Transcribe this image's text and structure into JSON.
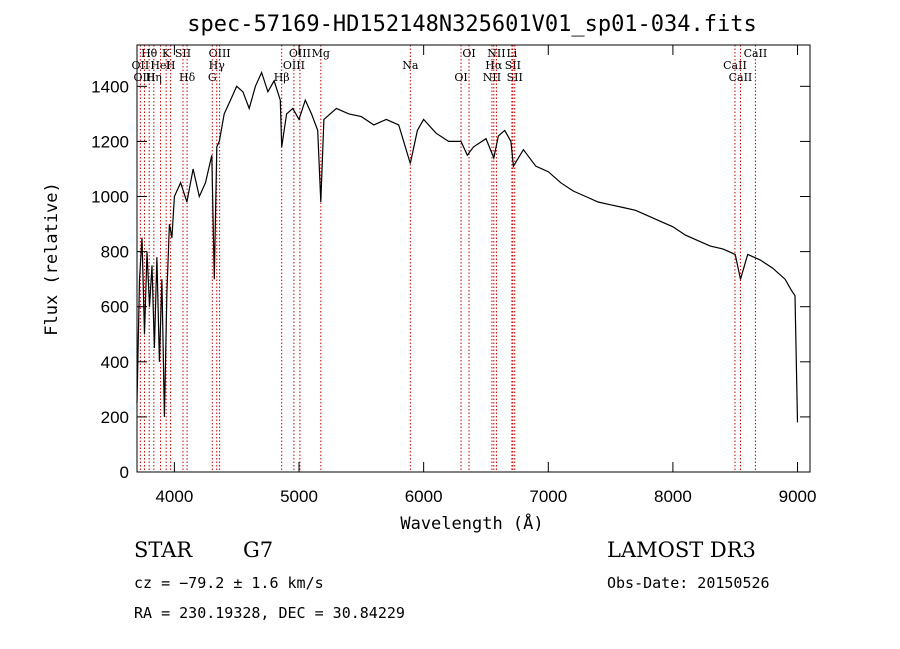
{
  "chart_data": {
    "type": "line",
    "title": "spec-57169-HD152148N325601V01_sp01-034.fits",
    "xlabel": "Wavelength (Å)",
    "ylabel": "Flux (relative)",
    "xlim": [
      3700,
      9100
    ],
    "ylim": [
      0,
      1550
    ],
    "xticks": [
      4000,
      5000,
      6000,
      7000,
      8000,
      9000
    ],
    "yticks": [
      0,
      200,
      400,
      600,
      800,
      1000,
      1200,
      1400
    ],
    "series": [
      {
        "name": "flux",
        "x": [
          3700,
          3720,
          3740,
          3760,
          3780,
          3800,
          3820,
          3840,
          3860,
          3880,
          3900,
          3920,
          3940,
          3960,
          3980,
          4000,
          4050,
          4100,
          4150,
          4200,
          4250,
          4300,
          4320,
          4340,
          4360,
          4400,
          4450,
          4500,
          4550,
          4600,
          4650,
          4700,
          4750,
          4800,
          4850,
          4861,
          4900,
          4950,
          5000,
          5050,
          5100,
          5150,
          5175,
          5200,
          5300,
          5400,
          5500,
          5600,
          5700,
          5800,
          5893,
          5950,
          6000,
          6100,
          6200,
          6300,
          6350,
          6400,
          6500,
          6563,
          6600,
          6650,
          6700,
          6720,
          6800,
          6900,
          7000,
          7100,
          7200,
          7300,
          7400,
          7500,
          7600,
          7700,
          7800,
          7900,
          8000,
          8100,
          8200,
          8300,
          8400,
          8500,
          8542,
          8600,
          8700,
          8800,
          8900,
          8950,
          8980,
          9000
        ],
        "values": [
          250,
          700,
          850,
          500,
          800,
          600,
          750,
          450,
          780,
          400,
          700,
          200,
          650,
          900,
          850,
          1000,
          1050,
          980,
          1100,
          1000,
          1050,
          1150,
          700,
          1180,
          1200,
          1300,
          1350,
          1400,
          1380,
          1320,
          1400,
          1450,
          1380,
          1420,
          1350,
          1180,
          1300,
          1320,
          1280,
          1350,
          1300,
          1240,
          980,
          1280,
          1320,
          1300,
          1290,
          1260,
          1280,
          1260,
          1120,
          1240,
          1280,
          1230,
          1200,
          1200,
          1150,
          1180,
          1210,
          1140,
          1220,
          1240,
          1200,
          1110,
          1170,
          1110,
          1090,
          1050,
          1020,
          1000,
          980,
          970,
          960,
          950,
          930,
          910,
          890,
          860,
          840,
          820,
          810,
          790,
          700,
          790,
          770,
          740,
          700,
          660,
          640,
          180
        ]
      }
    ],
    "lines": [
      {
        "name": "Hθ",
        "wave": 3798
      },
      {
        "name": "OII",
        "wave": 3727
      },
      {
        "name": "OIII",
        "wave": 3760
      },
      {
        "name": "K",
        "wave": 3934
      },
      {
        "name": "HeI",
        "wave": 3889
      },
      {
        "name": "Hη",
        "wave": 3835
      },
      {
        "name": "SII",
        "wave": 4069
      },
      {
        "name": "H",
        "wave": 3970
      },
      {
        "name": "Hδ",
        "wave": 4102
      },
      {
        "name": "OIII",
        "wave": 4363
      },
      {
        "name": "Hγ",
        "wave": 4340
      },
      {
        "name": "G",
        "wave": 4304
      },
      {
        "name": "OIII",
        "wave": 5007
      },
      {
        "name": "OIII",
        "wave": 4959
      },
      {
        "name": "Hβ",
        "wave": 4861
      },
      {
        "name": "Mg",
        "wave": 5175
      },
      {
        "name": "Na",
        "wave": 5893
      },
      {
        "name": "OI",
        "wave": 6300
      },
      {
        "name": "OI",
        "wave": 6364
      },
      {
        "name": "Hα",
        "wave": 6563
      },
      {
        "name": "NII",
        "wave": 6548
      },
      {
        "name": "NII",
        "wave": 6584
      },
      {
        "name": "SII",
        "wave": 6716
      },
      {
        "name": "SII",
        "wave": 6731
      },
      {
        "name": "Li",
        "wave": 6708
      },
      {
        "name": "CaII",
        "wave": 8498
      },
      {
        "name": "CaII",
        "wave": 8542
      },
      {
        "name": "CaII",
        "wave": 8662
      }
    ]
  },
  "info": {
    "object_class": "STAR",
    "subclass": "G7",
    "survey": "LAMOST DR3",
    "cz": "cz = −79.2 ± 1.6 km/s",
    "obs_date": "Obs-Date: 20150526",
    "coords": "RA = 230.19328, DEC =  30.84229"
  },
  "colors": {
    "line": "#000000",
    "marker": "#cc0000"
  }
}
